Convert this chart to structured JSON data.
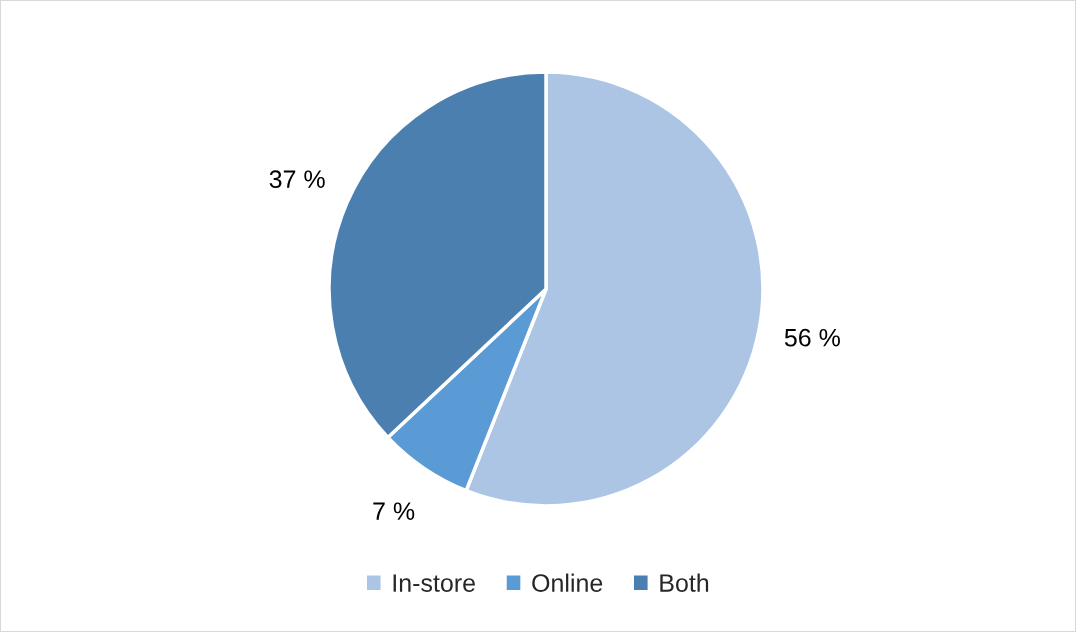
{
  "chart_data": {
    "type": "pie",
    "categories": [
      "In-store",
      "Online",
      "Both"
    ],
    "values": [
      56,
      7,
      37
    ],
    "colors": [
      "#adc5e5",
      "#5b9bd5",
      "#4a7fb0"
    ],
    "value_labels": [
      "56 %",
      "7 %",
      "37 %"
    ],
    "legend": "bottom"
  }
}
